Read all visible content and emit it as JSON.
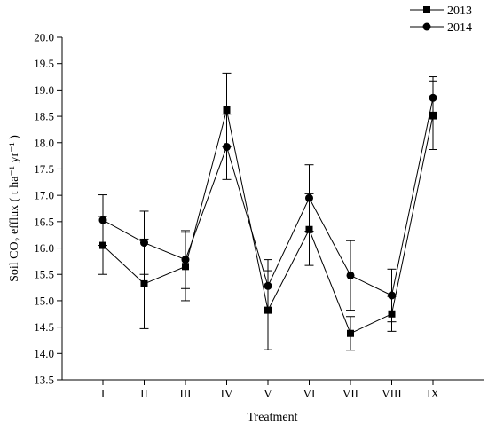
{
  "chart_data": {
    "type": "line",
    "xlabel": "Treatment",
    "ylabel": "Soil CO₂ efflux ( t ha⁻¹ yr⁻¹ )",
    "categories": [
      "I",
      "II",
      "III",
      "IV",
      "V",
      "VI",
      "VII",
      "VIII",
      "IX"
    ],
    "ylim": [
      13.5,
      20.0
    ],
    "yticks": [
      "13.5",
      "14.0",
      "14.5",
      "15.0",
      "15.5",
      "16.0",
      "16.5",
      "17.0",
      "17.5",
      "18.0",
      "18.5",
      "19.0",
      "19.5",
      "20.0"
    ],
    "grid": false,
    "legend": "top-right",
    "series": [
      {
        "name": "2013",
        "marker": "square",
        "color": "#000000",
        "values": [
          16.05,
          15.32,
          15.65,
          18.62,
          14.82,
          16.35,
          14.38,
          14.75,
          18.52
        ],
        "errors": [
          0.55,
          0.85,
          0.65,
          0.7,
          0.75,
          0.68,
          0.32,
          0.33,
          0.65
        ]
      },
      {
        "name": "2014",
        "marker": "circle",
        "color": "#000000",
        "values": [
          16.53,
          16.1,
          15.78,
          17.92,
          15.28,
          16.95,
          15.48,
          15.1,
          18.85
        ],
        "errors": [
          0.48,
          0.6,
          0.55,
          0.62,
          0.5,
          0.63,
          0.66,
          0.5,
          0.4
        ]
      }
    ]
  }
}
